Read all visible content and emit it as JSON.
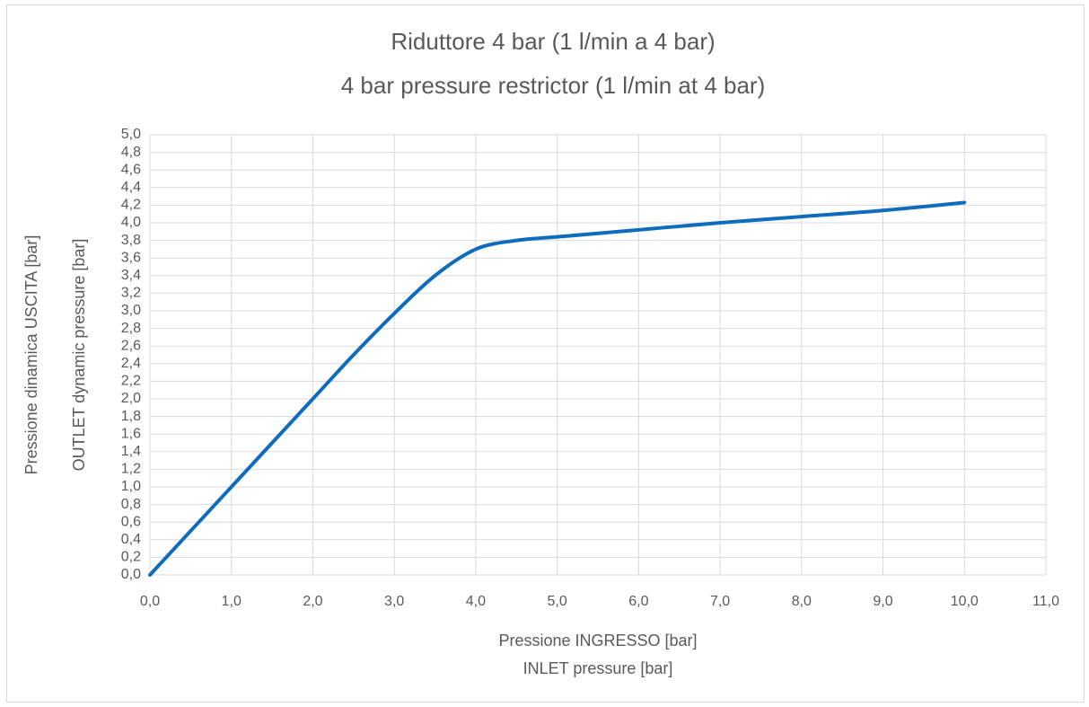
{
  "chart_data": {
    "type": "line",
    "title": [
      "Riduttore 4 bar (1 l/min a 4 bar)",
      "4 bar pressure restrictor (1 l/min at 4 bar)"
    ],
    "x_label": [
      "Pressione INGRESSO [bar]",
      "INLET pressure [bar]"
    ],
    "y_label": [
      "Pressione dinamica USCITA [bar]",
      "OUTLET dynamic pressure [bar]"
    ],
    "x": [
      0,
      1,
      2,
      2.5,
      3,
      3.5,
      4,
      4.5,
      5,
      6,
      7,
      8,
      9,
      10
    ],
    "series": [
      {
        "name": "",
        "color": "#0f6cbd",
        "values": [
          0,
          1,
          2,
          2.5,
          2.97,
          3.4,
          3.7,
          3.8,
          3.84,
          3.92,
          4.0,
          4.07,
          4.14,
          4.23
        ]
      }
    ],
    "xlim": [
      0,
      11
    ],
    "ylim": [
      0,
      5
    ],
    "xticks": [
      {
        "value": 0,
        "label": "0,0"
      },
      {
        "value": 1,
        "label": "1,0"
      },
      {
        "value": 2,
        "label": "2,0"
      },
      {
        "value": 3,
        "label": "3,0"
      },
      {
        "value": 4,
        "label": "4,0"
      },
      {
        "value": 5,
        "label": "5,0"
      },
      {
        "value": 6,
        "label": "6,0"
      },
      {
        "value": 7,
        "label": "7,0"
      },
      {
        "value": 8,
        "label": "8,0"
      },
      {
        "value": 9,
        "label": "9,0"
      },
      {
        "value": 10,
        "label": "10,0"
      },
      {
        "value": 11,
        "label": "11,0"
      }
    ],
    "yticks": [
      {
        "value": 0,
        "label": "0,0"
      },
      {
        "value": 0.2,
        "label": "0,2"
      },
      {
        "value": 0.4,
        "label": "0,4"
      },
      {
        "value": 0.6,
        "label": "0,6"
      },
      {
        "value": 0.8,
        "label": "0,8"
      },
      {
        "value": 1,
        "label": "1,0"
      },
      {
        "value": 1.2,
        "label": "1,2"
      },
      {
        "value": 1.4,
        "label": "1,4"
      },
      {
        "value": 1.6,
        "label": "1,6"
      },
      {
        "value": 1.8,
        "label": "1,8"
      },
      {
        "value": 2,
        "label": "2,0"
      },
      {
        "value": 2.2,
        "label": "2,2"
      },
      {
        "value": 2.4,
        "label": "2,4"
      },
      {
        "value": 2.6,
        "label": "2,6"
      },
      {
        "value": 2.8,
        "label": "2,8"
      },
      {
        "value": 3,
        "label": "3,0"
      },
      {
        "value": 3.2,
        "label": "3,2"
      },
      {
        "value": 3.4,
        "label": "3,4"
      },
      {
        "value": 3.6,
        "label": "3,6"
      },
      {
        "value": 3.8,
        "label": "3,8"
      },
      {
        "value": 4,
        "label": "4,0"
      },
      {
        "value": 4.2,
        "label": "4,2"
      },
      {
        "value": 4.4,
        "label": "4,4"
      },
      {
        "value": 4.6,
        "label": "4,6"
      },
      {
        "value": 4.8,
        "label": "4,8"
      },
      {
        "value": 5,
        "label": "5,0"
      }
    ],
    "grid": true
  }
}
